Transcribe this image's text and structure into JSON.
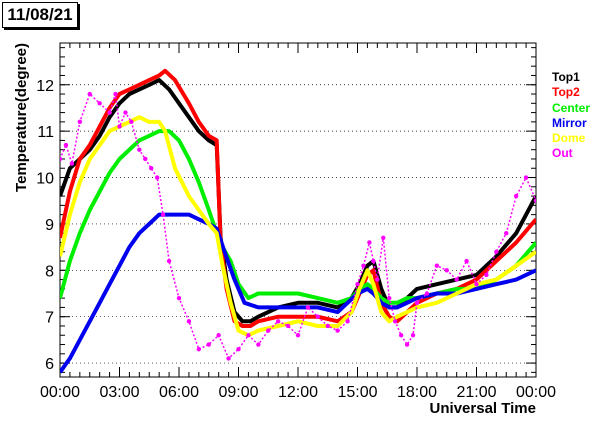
{
  "title": "11/08/21",
  "chart_data": {
    "type": "line",
    "xlabel": "Universal Time",
    "ylabel": "Temperature(degree)",
    "xlim": [
      0,
      24
    ],
    "ylim": [
      5.7,
      12.9
    ],
    "x_tick_labels": [
      "00:00",
      "03:00",
      "06:00",
      "09:00",
      "12:00",
      "15:00",
      "18:00",
      "21:00",
      "00:00"
    ],
    "y_tick_labels": [
      "6",
      "7",
      "8",
      "9",
      "10",
      "11",
      "12"
    ],
    "grid": "horizontal dotted",
    "legend_position": "right",
    "series": [
      {
        "name": "Top1",
        "color": "#000000",
        "x": [
          0,
          0.5,
          1,
          1.5,
          2,
          2.5,
          3,
          3.5,
          4,
          4.5,
          5,
          5.5,
          6,
          6.5,
          7,
          7.5,
          7.9,
          8.1,
          8.4,
          8.8,
          9.2,
          9.6,
          10,
          11,
          12,
          13,
          14,
          14.7,
          15.1,
          15.5,
          15.8,
          16.2,
          16.6,
          17,
          17.5,
          18,
          19,
          20,
          21,
          22,
          23,
          24
        ],
        "y": [
          9.6,
          10.2,
          10.4,
          10.6,
          10.9,
          11.3,
          11.6,
          11.8,
          11.9,
          12.0,
          12.1,
          11.9,
          11.6,
          11.3,
          11.0,
          10.8,
          10.7,
          8.7,
          7.8,
          7.1,
          6.9,
          6.9,
          7.0,
          7.2,
          7.3,
          7.3,
          7.2,
          7.4,
          7.7,
          8.1,
          8.2,
          7.6,
          7.2,
          7.2,
          7.4,
          7.6,
          7.7,
          7.8,
          7.9,
          8.3,
          8.8,
          9.6
        ]
      },
      {
        "name": "Top2",
        "color": "#ff0000",
        "x": [
          0,
          0.5,
          1,
          1.5,
          2,
          2.5,
          3,
          3.5,
          4,
          4.5,
          5,
          5.3,
          5.8,
          6.5,
          7,
          7.5,
          7.9,
          8.1,
          8.4,
          8.8,
          9.2,
          9.6,
          10,
          11,
          12,
          13,
          14,
          14.7,
          15.1,
          15.5,
          15.8,
          16.2,
          16.6,
          17,
          17.5,
          18,
          19,
          20,
          21,
          22,
          23,
          24
        ],
        "y": [
          8.7,
          9.7,
          10.4,
          10.7,
          11.1,
          11.5,
          11.8,
          11.9,
          12.0,
          12.1,
          12.2,
          12.3,
          12.1,
          11.6,
          11.2,
          10.9,
          10.8,
          8.6,
          7.6,
          6.9,
          6.8,
          6.8,
          6.9,
          7.0,
          7.0,
          7.0,
          6.9,
          7.1,
          7.5,
          7.9,
          8.0,
          7.3,
          7.0,
          6.9,
          7.1,
          7.3,
          7.5,
          7.6,
          7.8,
          8.2,
          8.6,
          9.1
        ]
      },
      {
        "name": "Center",
        "color": "#00ee00",
        "x": [
          0,
          0.5,
          1,
          1.5,
          2,
          2.5,
          3,
          3.5,
          4,
          4.5,
          5,
          5.5,
          6,
          6.5,
          7,
          7.5,
          7.9,
          8.2,
          8.6,
          9,
          9.5,
          10,
          11,
          12,
          13,
          14,
          14.7,
          15.1,
          15.5,
          15.8,
          16.2,
          16.6,
          17,
          17.5,
          18,
          19,
          20,
          21,
          22,
          23,
          24
        ],
        "y": [
          7.4,
          8.2,
          8.8,
          9.3,
          9.7,
          10.1,
          10.4,
          10.6,
          10.8,
          10.9,
          11.0,
          11.0,
          10.8,
          10.4,
          9.9,
          9.3,
          8.8,
          8.5,
          8.2,
          7.7,
          7.4,
          7.5,
          7.5,
          7.5,
          7.4,
          7.3,
          7.4,
          7.6,
          7.7,
          7.6,
          7.4,
          7.3,
          7.3,
          7.4,
          7.4,
          7.5,
          7.6,
          7.6,
          7.8,
          8.1,
          8.6
        ]
      },
      {
        "name": "Mirror",
        "color": "#0000ee",
        "x": [
          0,
          0.5,
          1,
          1.5,
          2,
          2.5,
          3,
          3.5,
          4,
          4.5,
          5,
          5.5,
          6,
          6.5,
          7,
          7.5,
          7.9,
          8.3,
          8.8,
          9.3,
          10,
          11,
          12,
          13,
          14,
          14.5,
          15,
          15.5,
          15.8,
          16.2,
          16.6,
          17,
          17.5,
          18,
          19,
          20,
          21,
          22,
          23,
          24
        ],
        "y": [
          5.8,
          6.1,
          6.5,
          6.9,
          7.3,
          7.7,
          8.1,
          8.5,
          8.8,
          9.0,
          9.2,
          9.2,
          9.2,
          9.2,
          9.1,
          9.0,
          8.9,
          8.4,
          7.8,
          7.3,
          7.2,
          7.2,
          7.2,
          7.2,
          7.1,
          7.3,
          7.5,
          7.6,
          7.5,
          7.3,
          7.2,
          7.2,
          7.3,
          7.4,
          7.5,
          7.5,
          7.6,
          7.7,
          7.8,
          8.0
        ]
      },
      {
        "name": "Dome",
        "color": "#ffff00",
        "x": [
          0,
          0.5,
          1,
          1.5,
          2,
          2.5,
          3,
          3.5,
          4,
          4.5,
          5,
          5.3,
          5.8,
          6.5,
          7,
          7.5,
          7.9,
          8.2,
          8.6,
          9,
          9.5,
          10,
          11,
          12,
          13,
          14,
          14.7,
          15.1,
          15.5,
          15.8,
          16.2,
          16.6,
          17,
          17.5,
          18,
          19,
          20,
          21,
          22,
          23,
          24
        ],
        "y": [
          8.3,
          9.2,
          9.9,
          10.4,
          10.7,
          11.0,
          11.1,
          11.2,
          11.3,
          11.2,
          11.2,
          11.0,
          10.2,
          9.6,
          9.3,
          9.0,
          8.8,
          8.1,
          7.3,
          6.7,
          6.6,
          6.7,
          6.8,
          6.9,
          6.8,
          6.8,
          7.1,
          7.6,
          8.0,
          7.7,
          7.1,
          6.9,
          7.0,
          7.1,
          7.2,
          7.3,
          7.5,
          7.7,
          7.8,
          8.1,
          8.4
        ]
      },
      {
        "name": "Out",
        "color": "#ff00ff",
        "x": [
          0,
          0.3,
          0.6,
          1,
          1.5,
          2,
          2.5,
          2.8,
          3,
          3.3,
          3.6,
          4,
          4.3,
          4.6,
          4.9,
          5.2,
          5.5,
          6,
          6.5,
          7,
          7.5,
          8,
          8.5,
          9,
          9.5,
          10,
          10.5,
          11,
          11.5,
          12,
          12.5,
          13,
          13.5,
          14,
          14.5,
          15,
          15.3,
          15.6,
          15.8,
          16,
          16.3,
          16.6,
          16.9,
          17.2,
          17.5,
          17.8,
          18,
          18.5,
          19,
          19.5,
          20,
          20.5,
          21,
          21.5,
          22,
          22.5,
          23,
          23.5,
          24
        ],
        "y": [
          10.4,
          10.7,
          10.3,
          11.2,
          11.8,
          11.6,
          11.4,
          11.8,
          11.1,
          11.4,
          11.2,
          10.6,
          10.4,
          10.2,
          10.0,
          9.2,
          8.2,
          7.4,
          6.9,
          6.3,
          6.4,
          6.6,
          6.1,
          6.3,
          6.6,
          6.4,
          6.7,
          6.9,
          6.8,
          6.6,
          7.2,
          7.0,
          6.8,
          6.7,
          6.9,
          7.7,
          8.1,
          8.6,
          8.2,
          7.8,
          8.7,
          7.4,
          6.9,
          6.6,
          6.4,
          6.6,
          7.3,
          7.5,
          8.1,
          8.0,
          7.8,
          8.2,
          7.7,
          7.9,
          8.4,
          8.8,
          9.6,
          10.0,
          9.5
        ]
      }
    ]
  }
}
